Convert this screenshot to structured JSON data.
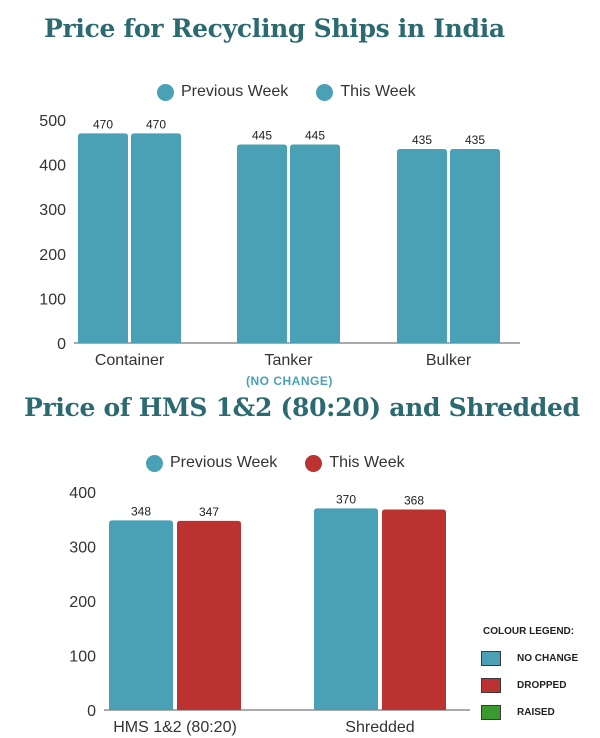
{
  "colors": {
    "teal": "#4aa1b6",
    "red": "#bc3231",
    "green": "#3b9a2d",
    "title": "#2c6a72"
  },
  "chart_data": [
    {
      "type": "bar",
      "title": "Price for Recycling Ships in India",
      "categories": [
        "Container",
        "Tanker",
        "Bulker"
      ],
      "series": [
        {
          "name": "Previous Week",
          "values": [
            470,
            445,
            435
          ],
          "color": "#4aa1b6"
        },
        {
          "name": "This Week",
          "values": [
            470,
            445,
            435
          ],
          "color": "#4aa1b6"
        }
      ],
      "ylim": [
        0,
        500
      ],
      "yticks": [
        0,
        100,
        200,
        300,
        400,
        500
      ],
      "annotation": "(NO CHANGE)",
      "legend": "top-center",
      "grid": false
    },
    {
      "type": "bar",
      "title": "Price of HMS 1&2 (80:20) and Shredded",
      "categories": [
        "HMS 1&2 (80:20)",
        "Shredded"
      ],
      "series": [
        {
          "name": "Previous Week",
          "values": [
            348,
            370
          ],
          "color": "#4aa1b6"
        },
        {
          "name": "This Week",
          "values": [
            347,
            368
          ],
          "color": "#bc3231"
        }
      ],
      "ylim": [
        0,
        400
      ],
      "yticks": [
        0,
        100,
        200,
        300,
        400
      ],
      "legend": "top-center",
      "grid": false
    }
  ],
  "colour_legend": {
    "title": "COLOUR LEGEND:",
    "items": [
      {
        "label": "NO CHANGE",
        "color": "#4aa1b6"
      },
      {
        "label": "DROPPED",
        "color": "#bc3231"
      },
      {
        "label": "RAISED",
        "color": "#3b9a2d"
      }
    ]
  }
}
